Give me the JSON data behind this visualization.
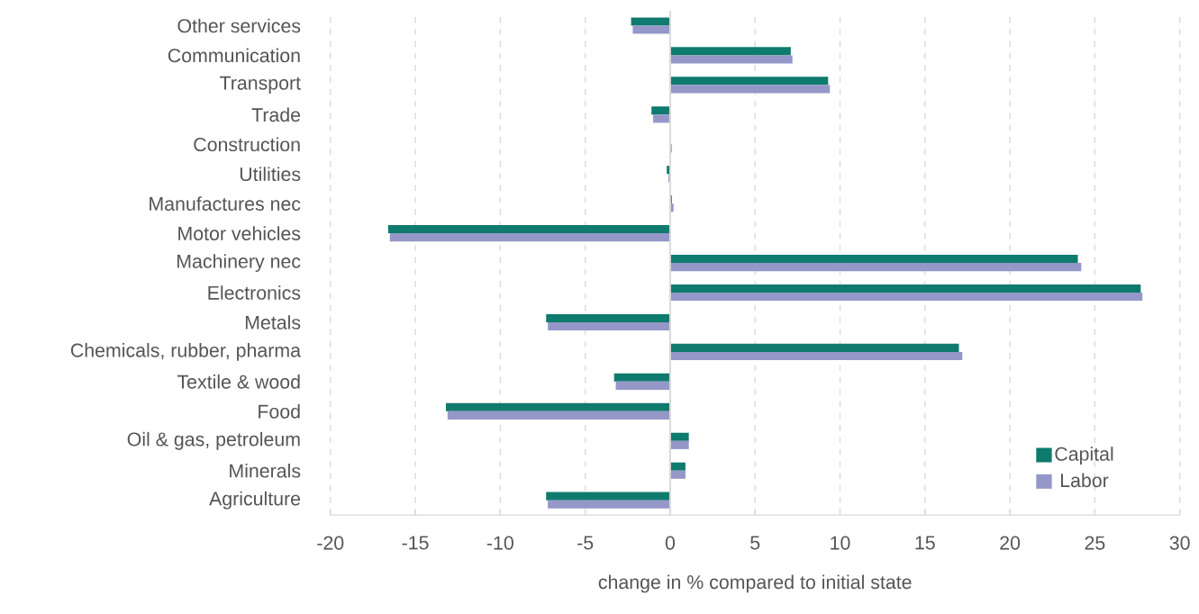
{
  "chart_data": {
    "type": "bar",
    "orientation": "horizontal",
    "xlabel": "change in % compared to initial state",
    "categories": [
      "Other services",
      "Communication",
      "Transport",
      "Trade",
      "Construction",
      "Utilities",
      "Manufactures nec",
      "Motor vehicles",
      "Machinery nec",
      "Electronics",
      "Metals",
      "Chemicals, rubber, pharma",
      "Textile & wood",
      "Food",
      "Oil & gas, petroleum",
      "Minerals",
      "Agriculture"
    ],
    "series": [
      {
        "name": "Capital",
        "color": "#0f7a6e",
        "values": [
          -2.3,
          7.1,
          9.3,
          -1.1,
          0.0,
          -0.2,
          0.1,
          -16.6,
          24.0,
          27.7,
          -7.3,
          17.0,
          -3.3,
          -13.2,
          1.1,
          0.9,
          -7.3
        ]
      },
      {
        "name": "Labor",
        "color": "#9497c8",
        "values": [
          -2.2,
          7.2,
          9.4,
          -1.0,
          0.1,
          -0.1,
          0.2,
          -16.5,
          24.2,
          27.8,
          -7.2,
          17.2,
          -3.2,
          -13.1,
          1.1,
          0.9,
          -7.2
        ]
      }
    ],
    "xlim": [
      -20,
      30
    ],
    "xticks": [
      -20,
      -15,
      -10,
      -5,
      0,
      5,
      10,
      15,
      20,
      25,
      30
    ],
    "grid": "x",
    "legend": "bottom right"
  }
}
